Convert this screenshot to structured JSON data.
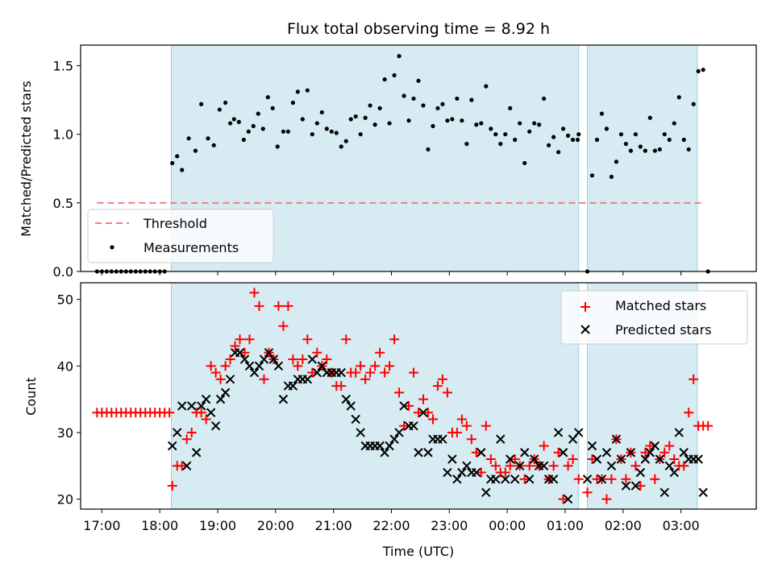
{
  "chart_data": [
    {
      "type": "scatter",
      "title": "Flux total observing time = 8.92 h",
      "xlabel": "",
      "ylabel": "Matched/Predicted stars",
      "ylim": [
        0,
        1.65
      ],
      "xlim": [
        "16:38",
        "04:18"
      ],
      "yticks": [
        "0.0",
        "0.5",
        "1.0",
        "1.5"
      ],
      "shaded_intervals": [
        [
          "18:12",
          "01:14"
        ],
        [
          "01:23",
          "03:17"
        ]
      ],
      "threshold": {
        "name": "Threshold",
        "value": 0.5,
        "x": [
          "16:55",
          "03:22"
        ],
        "color": "#f08080"
      },
      "legend": {
        "placement": "lower-left",
        "entries": [
          "Threshold",
          "Measurements"
        ]
      },
      "series": [
        {
          "name": "Measurements",
          "color": "#000000",
          "x": [
            "16:55",
            "17:00",
            "17:05",
            "17:10",
            "17:15",
            "17:20",
            "17:25",
            "17:30",
            "17:35",
            "17:40",
            "17:45",
            "17:50",
            "17:55",
            "18:00",
            "18:05",
            "18:13",
            "18:18",
            "18:23",
            "18:30",
            "18:37",
            "18:43",
            "18:50",
            "18:56",
            "19:02",
            "19:08",
            "19:13",
            "19:17",
            "19:22",
            "19:27",
            "19:32",
            "19:37",
            "19:42",
            "19:47",
            "19:52",
            "19:57",
            "20:02",
            "20:08",
            "20:13",
            "20:18",
            "20:23",
            "20:28",
            "20:33",
            "20:38",
            "20:43",
            "20:48",
            "20:53",
            "20:58",
            "21:03",
            "21:08",
            "21:13",
            "21:18",
            "21:23",
            "21:28",
            "21:33",
            "21:38",
            "21:43",
            "21:48",
            "21:53",
            "21:58",
            "22:03",
            "22:08",
            "22:13",
            "22:18",
            "22:23",
            "22:28",
            "22:33",
            "22:38",
            "22:43",
            "22:48",
            "22:53",
            "22:58",
            "23:03",
            "23:08",
            "23:13",
            "23:18",
            "23:23",
            "23:28",
            "23:33",
            "23:38",
            "23:43",
            "23:48",
            "23:53",
            "23:58",
            "00:03",
            "00:08",
            "00:13",
            "00:18",
            "00:23",
            "00:28",
            "00:33",
            "00:38",
            "00:43",
            "00:48",
            "00:53",
            "00:58",
            "01:03",
            "01:08",
            "01:13",
            "01:14",
            "01:23",
            "01:28",
            "01:33",
            "01:38",
            "01:43",
            "01:48",
            "01:53",
            "01:58",
            "02:03",
            "02:08",
            "02:13",
            "02:18",
            "02:23",
            "02:28",
            "02:33",
            "02:38",
            "02:43",
            "02:48",
            "02:53",
            "02:58",
            "03:03",
            "03:08",
            "03:13",
            "03:18",
            "03:23",
            "03:28"
          ],
          "y": [
            0,
            0,
            0,
            0,
            0,
            0,
            0,
            0,
            0,
            0,
            0,
            0,
            0,
            0,
            0,
            0.79,
            0.84,
            0.74,
            0.97,
            0.88,
            1.22,
            0.97,
            0.92,
            1.18,
            1.23,
            1.08,
            1.11,
            1.09,
            0.96,
            1.02,
            1.06,
            1.15,
            1.04,
            1.27,
            1.19,
            0.91,
            1.02,
            1.02,
            1.23,
            1.31,
            1.11,
            1.32,
            1.0,
            1.08,
            1.16,
            1.04,
            1.02,
            1.01,
            0.91,
            0.95,
            1.11,
            1.13,
            1.0,
            1.12,
            1.21,
            1.07,
            1.19,
            1.4,
            1.08,
            1.43,
            1.57,
            1.28,
            1.1,
            1.26,
            1.39,
            1.21,
            0.89,
            1.06,
            1.19,
            1.22,
            1.1,
            1.11,
            1.26,
            1.1,
            0.93,
            1.25,
            1.07,
            1.08,
            1.35,
            1.04,
            1.0,
            0.93,
            1.0,
            1.19,
            0.96,
            1.08,
            0.79,
            1.02,
            1.08,
            1.07,
            1.26,
            0.92,
            0.98,
            0.87,
            1.04,
            0.99,
            0.96,
            0.96,
            1.0,
            0.0,
            0.7,
            0.96,
            1.15,
            1.04,
            0.69,
            0.8,
            1.0,
            0.93,
            0.88,
            1.0,
            0.91,
            0.88,
            1.12,
            0.88,
            0.89,
            1.0,
            0.96,
            1.08,
            1.27,
            0.96,
            0.89,
            1.22,
            1.46,
            1.47,
            0.0
          ]
        }
      ]
    },
    {
      "type": "scatter",
      "title": "",
      "xlabel": "Time (UTC)",
      "ylabel": "Count",
      "ylim": [
        18.5,
        52.5
      ],
      "xlim": [
        "16:38",
        "04:18"
      ],
      "yticks": [
        "20",
        "30",
        "40",
        "50"
      ],
      "xticks": [
        "17:00",
        "18:00",
        "19:00",
        "20:00",
        "21:00",
        "22:00",
        "23:00",
        "00:00",
        "01:00",
        "02:00",
        "03:00"
      ],
      "shaded_intervals": [
        [
          "18:12",
          "01:14"
        ],
        [
          "01:23",
          "03:17"
        ]
      ],
      "legend": {
        "placement": "top-right",
        "entries": [
          "Matched stars",
          "Predicted stars"
        ]
      },
      "series": [
        {
          "name": "Matched stars",
          "color": "#ff0000",
          "marker": "+",
          "x": [
            "16:55",
            "17:00",
            "17:05",
            "17:10",
            "17:15",
            "17:20",
            "17:25",
            "17:30",
            "17:35",
            "17:40",
            "17:45",
            "17:50",
            "17:55",
            "18:00",
            "18:05",
            "18:10",
            "18:13",
            "18:18",
            "18:23",
            "18:28",
            "18:33",
            "18:38",
            "18:43",
            "18:48",
            "18:53",
            "18:58",
            "19:03",
            "19:08",
            "19:13",
            "19:18",
            "19:23",
            "19:28",
            "19:33",
            "19:38",
            "19:43",
            "19:48",
            "19:53",
            "19:58",
            "20:03",
            "20:08",
            "20:13",
            "20:18",
            "20:23",
            "20:28",
            "20:33",
            "20:38",
            "20:43",
            "20:48",
            "20:53",
            "20:58",
            "21:03",
            "21:08",
            "21:13",
            "21:18",
            "21:23",
            "21:28",
            "21:33",
            "21:38",
            "21:43",
            "21:48",
            "21:53",
            "21:58",
            "22:03",
            "22:08",
            "22:13",
            "22:18",
            "22:23",
            "22:28",
            "22:33",
            "22:38",
            "22:43",
            "22:48",
            "22:53",
            "22:58",
            "23:03",
            "23:08",
            "23:13",
            "23:18",
            "23:23",
            "23:28",
            "23:33",
            "23:38",
            "23:43",
            "23:48",
            "23:53",
            "23:58",
            "00:03",
            "00:08",
            "00:13",
            "00:18",
            "00:23",
            "00:28",
            "00:33",
            "00:38",
            "00:43",
            "00:48",
            "00:53",
            "00:58",
            "01:03",
            "01:08",
            "01:14",
            "01:23",
            "01:28",
            "01:33",
            "01:38",
            "01:43",
            "01:48",
            "01:53",
            "01:58",
            "02:03",
            "02:08",
            "02:13",
            "02:18",
            "02:23",
            "02:28",
            "02:33",
            "02:38",
            "02:43",
            "02:48",
            "02:53",
            "02:58",
            "03:03",
            "03:08",
            "03:13",
            "03:18",
            "03:23",
            "03:28"
          ],
          "y": [
            33,
            33,
            33,
            33,
            33,
            33,
            33,
            33,
            33,
            33,
            33,
            33,
            33,
            33,
            33,
            33,
            22,
            25,
            25,
            29,
            30,
            33,
            33,
            32,
            40,
            39,
            38,
            40,
            41,
            43,
            44,
            42,
            44,
            51,
            49,
            38,
            42,
            41,
            49,
            46,
            49,
            41,
            40,
            41,
            44,
            39,
            42,
            40,
            41,
            39,
            37,
            37,
            44,
            39,
            39,
            40,
            38,
            39,
            40,
            42,
            39,
            40,
            44,
            36,
            31,
            34,
            39,
            33,
            35,
            33,
            32,
            37,
            38,
            36,
            30,
            30,
            32,
            31,
            29,
            27,
            24,
            31,
            26,
            25,
            24,
            24,
            25,
            26,
            25,
            23,
            25,
            26,
            25,
            28,
            23,
            25,
            27,
            20,
            25,
            26,
            23,
            21,
            26,
            23,
            23,
            20,
            23,
            29,
            26,
            23,
            27,
            25,
            22,
            27,
            28,
            23,
            26,
            27,
            28,
            26,
            25,
            25,
            33,
            38,
            31,
            31,
            31
          ]
        },
        {
          "name": "Predicted stars",
          "color": "#000000",
          "marker": "x",
          "x": [
            "18:13",
            "18:18",
            "18:23",
            "18:28",
            "18:33",
            "18:38",
            "18:43",
            "18:48",
            "18:53",
            "18:58",
            "19:03",
            "19:08",
            "19:13",
            "19:18",
            "19:23",
            "19:28",
            "19:33",
            "19:38",
            "19:43",
            "19:48",
            "19:53",
            "19:58",
            "20:03",
            "20:08",
            "20:13",
            "20:18",
            "20:23",
            "20:28",
            "20:33",
            "20:38",
            "20:43",
            "20:48",
            "20:53",
            "20:58",
            "21:03",
            "21:08",
            "21:13",
            "21:18",
            "21:23",
            "21:28",
            "21:33",
            "21:38",
            "21:43",
            "21:48",
            "21:53",
            "21:58",
            "22:03",
            "22:08",
            "22:13",
            "22:18",
            "22:23",
            "22:28",
            "22:33",
            "22:38",
            "22:43",
            "22:48",
            "22:53",
            "22:58",
            "23:03",
            "23:08",
            "23:13",
            "23:18",
            "23:23",
            "23:28",
            "23:33",
            "23:38",
            "23:43",
            "23:48",
            "23:53",
            "23:58",
            "00:03",
            "00:08",
            "00:13",
            "00:18",
            "00:23",
            "00:28",
            "00:33",
            "00:38",
            "00:43",
            "00:48",
            "00:53",
            "00:58",
            "01:03",
            "01:08",
            "01:14",
            "01:23",
            "01:28",
            "01:33",
            "01:38",
            "01:43",
            "01:48",
            "01:53",
            "01:58",
            "02:03",
            "02:08",
            "02:13",
            "02:18",
            "02:23",
            "02:28",
            "02:33",
            "02:38",
            "02:43",
            "02:48",
            "02:53",
            "02:58",
            "03:03",
            "03:08",
            "03:13",
            "03:18",
            "03:23"
          ],
          "y": [
            28,
            30,
            34,
            25,
            34,
            27,
            34,
            35,
            33,
            31,
            35,
            36,
            38,
            42,
            42,
            41,
            40,
            39,
            40,
            41,
            42,
            41,
            40,
            35,
            37,
            37,
            38,
            38,
            38,
            41,
            39,
            40,
            39,
            39,
            39,
            39,
            35,
            34,
            32,
            30,
            28,
            28,
            28,
            28,
            27,
            28,
            29,
            30,
            34,
            31,
            31,
            27,
            33,
            27,
            29,
            29,
            29,
            24,
            26,
            23,
            24,
            25,
            24,
            24,
            27,
            21,
            23,
            23,
            29,
            23,
            26,
            23,
            25,
            27,
            23,
            26,
            25,
            25,
            23,
            23,
            30,
            27,
            20,
            29,
            30,
            23,
            28,
            26,
            23,
            27,
            25,
            29,
            26,
            22,
            27,
            22,
            24,
            26,
            27,
            28,
            26,
            21,
            25,
            24,
            30,
            27,
            26,
            26,
            26,
            21
          ]
        }
      ]
    }
  ]
}
